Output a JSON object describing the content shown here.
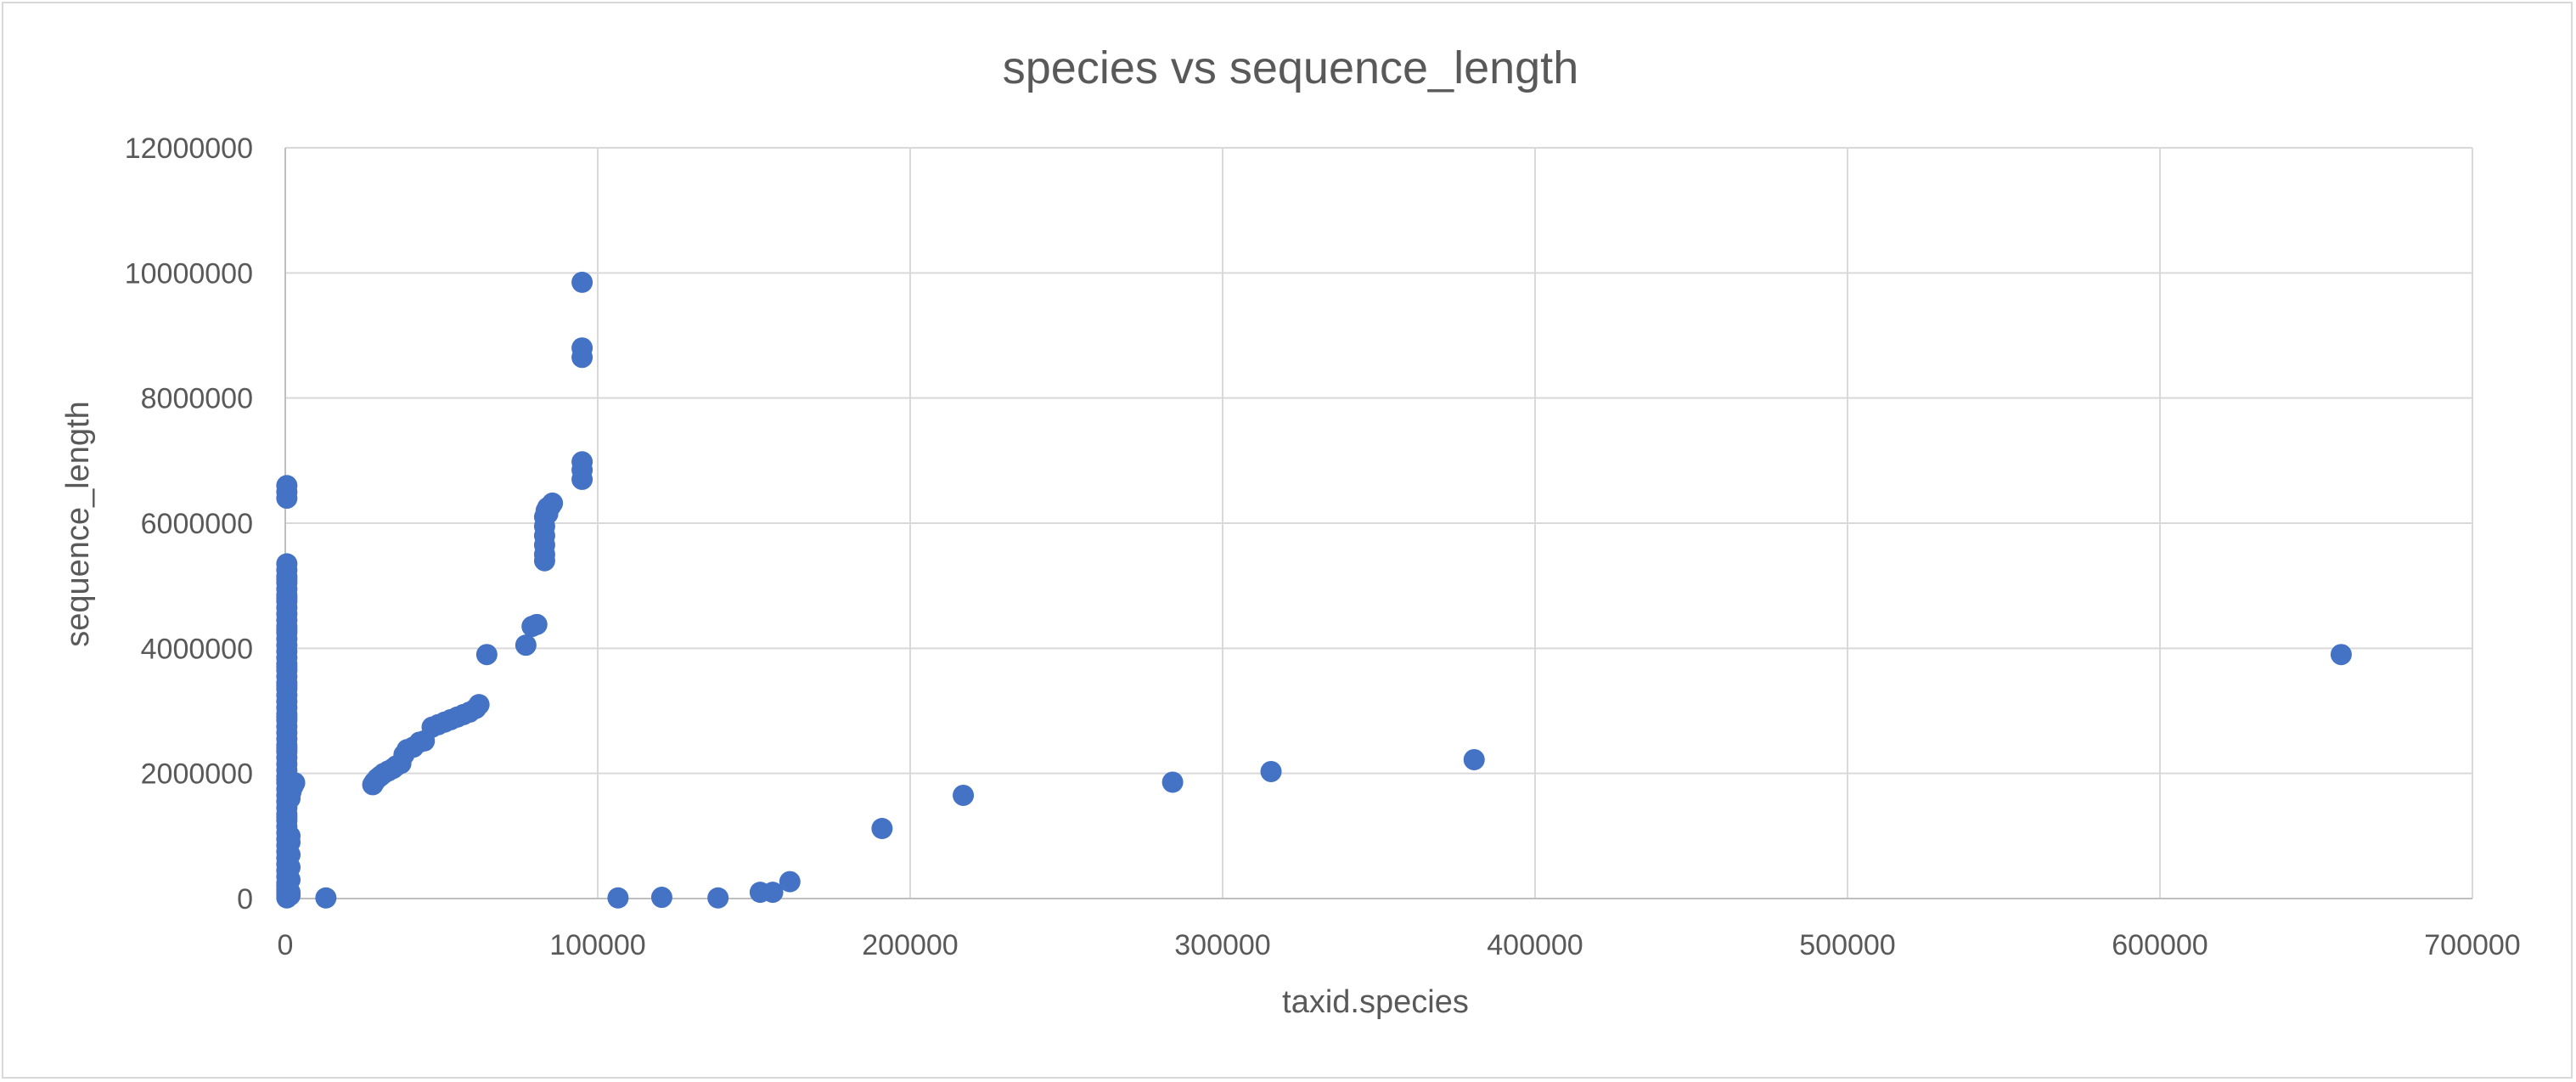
{
  "chart_data": {
    "type": "scatter",
    "title": "species vs sequence_length",
    "xlabel": "taxid.species",
    "ylabel": "sequence_length",
    "xlim": [
      0,
      700000
    ],
    "ylim": [
      0,
      12000000
    ],
    "x_ticks": [
      "0",
      "100000",
      "200000",
      "300000",
      "400000",
      "500000",
      "600000",
      "700000"
    ],
    "y_ticks": [
      "0",
      "2000000",
      "4000000",
      "6000000",
      "8000000",
      "10000000",
      "12000000"
    ],
    "grid": true,
    "legend": "none",
    "color": "#4472c4",
    "series": [
      {
        "x": [
          500,
          500,
          500,
          500,
          500,
          500,
          500,
          500,
          500,
          500,
          500,
          500,
          500,
          500,
          500,
          500,
          500,
          500,
          500,
          500,
          500,
          500,
          500,
          500,
          500,
          500,
          500,
          500,
          500,
          500,
          500,
          500,
          500,
          500,
          500,
          500,
          500,
          500,
          500,
          500,
          500,
          500,
          500,
          500,
          500,
          500,
          500,
          500,
          500,
          500,
          500,
          500,
          500,
          500,
          500,
          500,
          500,
          500,
          500,
          500,
          500,
          500,
          500,
          500,
          500,
          500,
          500,
          500,
          500,
          1500,
          1500,
          1500,
          1500,
          1500,
          1500,
          1500,
          1500,
          1500,
          1500,
          2500,
          2000,
          3000,
          1800,
          13000,
          28000,
          28500,
          29500,
          30500,
          31500,
          33000,
          34500,
          35500,
          37000,
          38000,
          39000,
          41000,
          43000,
          44500,
          47000,
          49000,
          51000,
          53000,
          55000,
          57000,
          59000,
          61000,
          62000,
          64500,
          77000,
          79000,
          80500,
          83000,
          83000,
          83000,
          83000,
          83000,
          83000,
          83500,
          84000,
          85000,
          85500,
          84000,
          95000,
          95000,
          95000,
          95000,
          95000,
          95000,
          106500,
          120500,
          138500,
          152000,
          156000,
          161500,
          191000,
          217000,
          284000,
          315500,
          380500,
          658000
        ],
        "y": [
          6600000,
          6500000,
          6400000,
          5350000,
          5250000,
          5150000,
          5050000,
          4950000,
          4850000,
          4750000,
          4650000,
          4550000,
          4450000,
          4350000,
          4250000,
          4150000,
          4050000,
          3950000,
          3850000,
          3750000,
          3650000,
          3550000,
          3450000,
          3350000,
          3250000,
          3150000,
          3050000,
          2950000,
          2850000,
          2750000,
          2650000,
          2550000,
          2450000,
          2350000,
          2250000,
          2150000,
          2050000,
          1950000,
          1850000,
          1750000,
          1650000,
          1550000,
          1450000,
          1350000,
          1250000,
          1150000,
          1050000,
          950000,
          850000,
          750000,
          650000,
          550000,
          450000,
          350000,
          250000,
          200000,
          150000,
          100000,
          50000,
          10000,
          3400000,
          3700000,
          4300000,
          4800000,
          5100000,
          2900000,
          2400000,
          1900000,
          1300000,
          1800000,
          1700000,
          1600000,
          1000000,
          900000,
          700000,
          500000,
          300000,
          100000,
          50000,
          1800000,
          1750000,
          1850000,
          1700000,
          10000,
          1820000,
          1860000,
          1920000,
          1960000,
          2000000,
          2040000,
          2080000,
          2120000,
          2160000,
          2300000,
          2380000,
          2420000,
          2500000,
          2520000,
          2740000,
          2780000,
          2820000,
          2860000,
          2900000,
          2940000,
          2980000,
          3040000,
          3100000,
          3900000,
          4050000,
          4350000,
          4380000,
          5400000,
          5500000,
          5650000,
          5800000,
          5950000,
          6100000,
          6200000,
          6250000,
          6280000,
          6320000,
          6150000,
          9850000,
          8800000,
          8650000,
          6980000,
          6850000,
          6700000,
          10000,
          20000,
          10000,
          100000,
          100000,
          270000,
          1120000,
          1650000,
          1860000,
          2030000,
          2220000,
          3900000
        ]
      }
    ]
  }
}
